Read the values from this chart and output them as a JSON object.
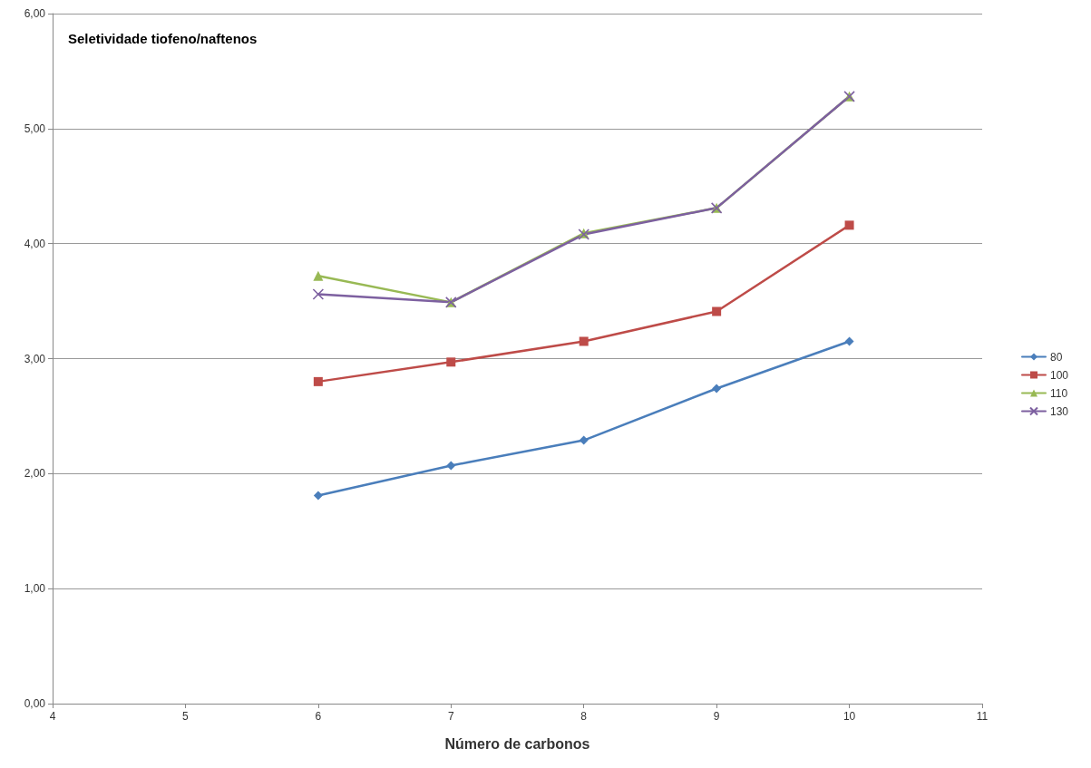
{
  "chart_data": {
    "type": "line",
    "title": "Seletividade tiofeno/naftenos",
    "xlabel": "Número de carbonos",
    "x": [
      6,
      7,
      8,
      9,
      10
    ],
    "series": [
      {
        "name": "80",
        "color": "#4a7ebb",
        "marker": "diamond",
        "values": [
          1.81,
          2.07,
          2.29,
          2.74,
          3.15
        ]
      },
      {
        "name": "100",
        "color": "#be4b48",
        "marker": "square",
        "values": [
          2.8,
          2.97,
          3.15,
          3.41,
          4.16
        ]
      },
      {
        "name": "110",
        "color": "#98b954",
        "marker": "triangle",
        "values": [
          3.72,
          3.49,
          4.09,
          4.31,
          5.28
        ]
      },
      {
        "name": "130",
        "color": "#7d60a0",
        "marker": "cross",
        "values": [
          3.56,
          3.49,
          4.08,
          4.31,
          5.28
        ]
      }
    ],
    "xlim": [
      4,
      11
    ],
    "xticks": [
      4,
      5,
      6,
      7,
      8,
      9,
      10,
      11
    ],
    "ylim": [
      0,
      6
    ],
    "yticks": [
      {
        "value": 0,
        "label": "0,00"
      },
      {
        "value": 1,
        "label": "1,00"
      },
      {
        "value": 2,
        "label": "2,00"
      },
      {
        "value": 3,
        "label": "3,00"
      },
      {
        "value": 4,
        "label": "4,00"
      },
      {
        "value": 5,
        "label": "5,00"
      },
      {
        "value": 6,
        "label": "6,00"
      }
    ],
    "grid": "y",
    "legend": "right"
  }
}
